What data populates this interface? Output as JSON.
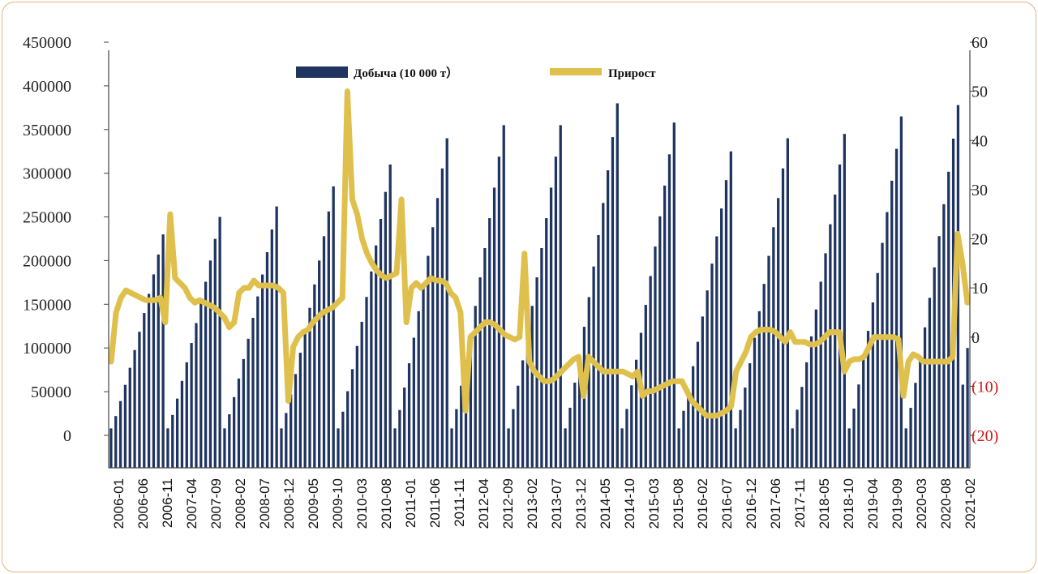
{
  "colors": {
    "bars": "#1f3460",
    "line": "#dfc04c",
    "negative_tick": "#d01818",
    "axis": "#444444",
    "frame": "#e3b27a"
  },
  "chart_data": {
    "type": "bar+line",
    "legend": {
      "bar_label": "Добыча (10 000 т）",
      "line_label": "Прирост",
      "placement": "top"
    },
    "y_left": {
      "ticks": [
        "0",
        "50000",
        "100000",
        "150000",
        "200000",
        "250000",
        "300000",
        "350000",
        "400000",
        "450000"
      ],
      "min": 0,
      "max": 450000
    },
    "y_right": {
      "ticks": [
        "(20)",
        "(10)",
        "0",
        "10",
        "20",
        "30",
        "40",
        "50",
        "60"
      ],
      "min": -20,
      "max": 60
    },
    "x_tick_labels": [
      "2006-01",
      "2006-06",
      "2006-11",
      "2007-04",
      "2007-09",
      "2008-02",
      "2008-07",
      "2008-12",
      "2009-05",
      "2009-10",
      "2010-03",
      "2010-08",
      "2011-01",
      "2011-06",
      "2011-11",
      "2012-04",
      "2012-09",
      "2013-02",
      "2013-07",
      "2013-12",
      "2014-05",
      "2014-10",
      "2015-03",
      "2015-08",
      "2016-02",
      "2016-07",
      "2016-12",
      "2017-06",
      "2017-11",
      "2018-05",
      "2018-10",
      "2019-04",
      "2019-09",
      "2020-03",
      "2020-08",
      "2021-02"
    ],
    "series": [
      {
        "name": "Добыча (10 000 т）",
        "kind": "bar",
        "axis": "left",
        "annual_cycles": [
          {
            "n": 12,
            "peak": 230000
          },
          {
            "n": 12,
            "peak": 250000
          },
          {
            "n": 12,
            "peak": 262000
          },
          {
            "n": 12,
            "peak": 285000
          },
          {
            "n": 12,
            "peak": 310000
          },
          {
            "n": 12,
            "peak": 340000
          },
          {
            "n": 12,
            "peak": 355000
          },
          {
            "n": 12,
            "peak": 355000
          },
          {
            "n": 12,
            "peak": 380000
          },
          {
            "n": 12,
            "peak": 358000
          },
          {
            "n": 12,
            "peak": 325000
          },
          {
            "n": 12,
            "peak": 340000
          },
          {
            "n": 12,
            "peak": 345000
          },
          {
            "n": 12,
            "peak": 365000
          },
          {
            "n": 12,
            "peak": 378000
          },
          {
            "n": 2,
            "peak": 100000
          }
        ],
        "cycle_start": 8000,
        "final_bar_in_cycle_1": 58000
      },
      {
        "name": "Прирост",
        "kind": "line",
        "axis": "right",
        "values": [
          -5,
          5,
          8,
          9.5,
          9,
          8.5,
          8,
          7.5,
          7.5,
          7.5,
          8,
          3,
          25,
          12,
          11,
          10,
          8,
          7,
          7.5,
          7,
          6.5,
          6,
          5,
          4,
          2,
          3,
          9,
          10,
          10,
          11.5,
          10.5,
          10.5,
          10.5,
          10.5,
          10,
          9,
          -13,
          -2,
          0,
          1,
          1.5,
          3,
          4,
          5,
          5.5,
          6,
          7,
          8,
          50,
          28,
          25,
          20,
          17,
          15,
          13.5,
          12.5,
          12,
          12.5,
          13,
          28,
          3,
          10,
          11,
          10,
          11,
          12,
          11.5,
          11.5,
          11,
          9,
          8,
          5,
          -15,
          0,
          1,
          2,
          3,
          3,
          2.5,
          1.5,
          0.5,
          0,
          -0.5,
          0,
          17,
          -5,
          -7,
          -8,
          -9,
          -9,
          -8.5,
          -7.5,
          -6.5,
          -5.5,
          -4.5,
          -4,
          -12,
          -4,
          -5,
          -6,
          -7,
          -7,
          -7,
          -7,
          -7,
          -7.5,
          -8,
          -7,
          -12,
          -11,
          -11,
          -10.5,
          -10,
          -9.5,
          -9,
          -9,
          -9,
          -11,
          -13,
          -14,
          -15,
          -16,
          -16,
          -16,
          -15.5,
          -15,
          -14,
          -7,
          -5,
          -3,
          0,
          1,
          1.5,
          1.5,
          1.5,
          1,
          0,
          -1,
          1,
          -1,
          -1,
          -1,
          -1.5,
          -1.5,
          -1,
          0,
          1,
          1,
          1,
          -7,
          -5,
          -4.5,
          -4.5,
          -4,
          -2,
          0,
          0,
          0,
          0,
          0,
          -0.5,
          -12,
          -5,
          -3.5,
          -4,
          -5,
          -5,
          -5,
          -5,
          -5,
          -5,
          -4,
          21,
          15,
          7
        ]
      }
    ]
  }
}
